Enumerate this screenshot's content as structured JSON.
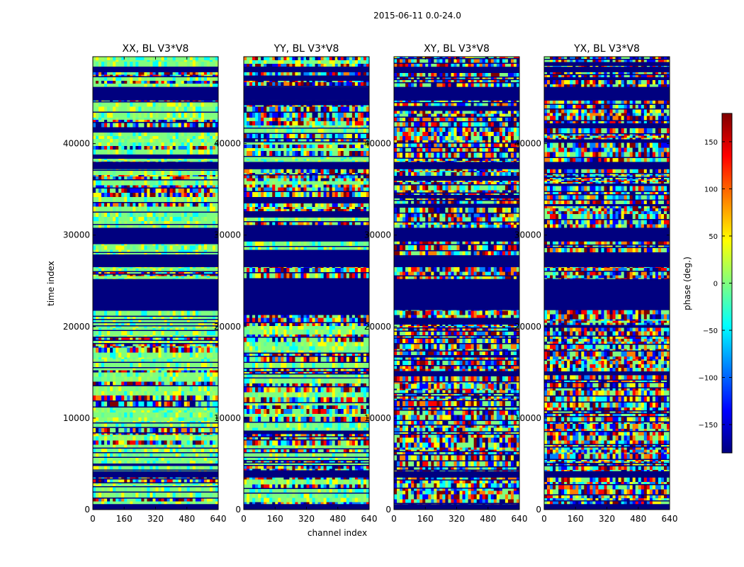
{
  "figure": {
    "title": "2015-06-11 0.0-24.0",
    "xlabel": "channel index",
    "ylabel": "time index"
  },
  "colorbar": {
    "label": "phase (deg.)",
    "min": -180,
    "max": 180,
    "ticks": [
      -150,
      -100,
      -50,
      0,
      50,
      100,
      150
    ],
    "tick_labels": [
      "−150",
      "−100",
      "−50",
      "0",
      "50",
      "100",
      "150"
    ],
    "colormap": [
      "#00007f",
      "#0000ff",
      "#007fff",
      "#00ffff",
      "#7fff7f",
      "#ffff00",
      "#ff7f00",
      "#ff0000",
      "#7f0000"
    ]
  },
  "chart_data": [
    {
      "type": "heatmap",
      "title": "XX, BL V3*V8",
      "xlabel": "",
      "ylabel": "time index",
      "xlim": [
        0,
        640
      ],
      "ylim": [
        0,
        49500
      ],
      "xticks": [
        0,
        160,
        320,
        480,
        640
      ],
      "yticks": [
        0,
        10000,
        20000,
        30000,
        40000
      ],
      "ytick_labels": [
        "0",
        "10000",
        "20000",
        "30000",
        "40000"
      ],
      "value": "phase (deg.)",
      "dominant": "green",
      "dark_bands": [
        [
          0,
          600
        ],
        [
          3500,
          4200
        ],
        [
          21800,
          25200
        ],
        [
          26500,
          27800
        ],
        [
          29300,
          30800
        ],
        [
          37200,
          38000
        ],
        [
          44700,
          46200
        ],
        [
          47800,
          48400
        ]
      ]
    },
    {
      "type": "heatmap",
      "title": "YY, BL V3*V8",
      "xlabel": "channel index",
      "ylabel": "",
      "xlim": [
        0,
        640
      ],
      "ylim": [
        0,
        49500
      ],
      "xticks": [
        0,
        160,
        320,
        480,
        640
      ],
      "yticks": [
        0,
        10000,
        20000,
        30000,
        40000
      ],
      "ytick_labels": [
        "0",
        "10000",
        "20000",
        "30000",
        "40000"
      ],
      "value": "phase (deg.)",
      "dominant": "mixed",
      "dark_bands": [
        [
          0,
          600
        ],
        [
          3500,
          4200
        ],
        [
          21800,
          25200
        ],
        [
          26500,
          27800
        ],
        [
          29300,
          30800
        ],
        [
          37200,
          38000
        ],
        [
          44700,
          46200
        ],
        [
          47800,
          48400
        ]
      ]
    },
    {
      "type": "heatmap",
      "title": "XY, BL V3*V8",
      "xlabel": "",
      "ylabel": "",
      "xlim": [
        0,
        640
      ],
      "ylim": [
        0,
        49500
      ],
      "xticks": [
        0,
        160,
        320,
        480,
        640
      ],
      "yticks": [
        0,
        10000,
        20000,
        30000,
        40000
      ],
      "ytick_labels": [
        "0",
        "10000",
        "20000",
        "30000",
        "40000"
      ],
      "value": "phase (deg.)",
      "dominant": "noise",
      "dark_bands": [
        [
          0,
          600
        ],
        [
          3500,
          4200
        ],
        [
          21800,
          25200
        ],
        [
          26500,
          27800
        ],
        [
          29300,
          30800
        ],
        [
          37200,
          38000
        ],
        [
          44700,
          46200
        ],
        [
          47800,
          48400
        ]
      ]
    },
    {
      "type": "heatmap",
      "title": "YX, BL V3*V8",
      "xlabel": "",
      "ylabel": "",
      "xlim": [
        0,
        640
      ],
      "ylim": [
        0,
        49500
      ],
      "xticks": [
        0,
        160,
        320,
        480,
        640
      ],
      "yticks": [
        0,
        10000,
        20000,
        30000,
        40000
      ],
      "ytick_labels": [
        "0",
        "10000",
        "20000",
        "30000",
        "40000"
      ],
      "value": "phase (deg.)",
      "dominant": "noise",
      "dark_bands": [
        [
          0,
          600
        ],
        [
          3500,
          4200
        ],
        [
          21800,
          25200
        ],
        [
          26500,
          27800
        ],
        [
          29300,
          30800
        ],
        [
          37200,
          38000
        ],
        [
          44700,
          46200
        ],
        [
          47800,
          48400
        ]
      ]
    }
  ]
}
